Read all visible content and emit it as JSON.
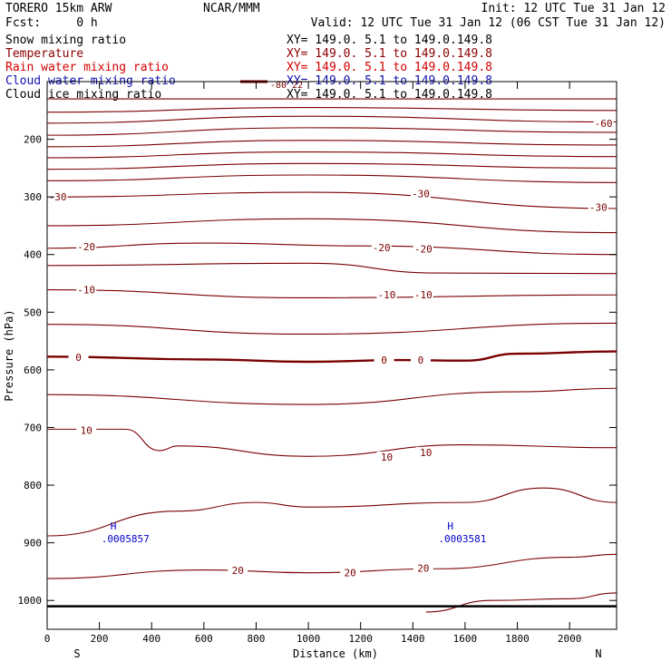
{
  "header": {
    "model_line": "TORERO  15km ARW",
    "center": "NCAR/MMM",
    "init": "Init: 12 UTC Tue 31 Jan 12",
    "fcst": "Fcst:     0 h",
    "valid": "Valid: 12 UTC Tue 31 Jan 12 (06 CST Tue 31 Jan 12)"
  },
  "chart_data": {
    "type": "line",
    "title": "",
    "xlabel": "Distance (km)",
    "ylabel": "Pressure (hPa)",
    "xlim": [
      0,
      2180
    ],
    "ylim": [
      1050,
      100
    ],
    "x_ticks": [
      0,
      200,
      400,
      600,
      800,
      1000,
      1200,
      1400,
      1600,
      1800,
      2000
    ],
    "y_ticks": [
      200,
      300,
      400,
      500,
      600,
      700,
      800,
      900,
      1000
    ],
    "x_end_labels": {
      "left": "S",
      "right": "N"
    },
    "legend_placement": "top-left",
    "legend": [
      {
        "name": "Snow mixing ratio",
        "xy": "XY= 149.0.  5.1 to 149.0.149.8",
        "color": "#000000"
      },
      {
        "name": "Temperature",
        "xy": "XY= 149.0.  5.1 to 149.0.149.8",
        "color": "#8b0000"
      },
      {
        "name": "Rain water mixing ratio",
        "xy": "XY= 149.0.  5.1 to 149.0.149.8",
        "color": "#d40000"
      },
      {
        "name": "Cloud water mixing ratio",
        "xy": "XY= 149.0.  5.1 to 149.0.149.8",
        "color": "#1010b0"
      },
      {
        "name": "Cloud ice mixing ratio",
        "xy": "XY= 149.0.  5.1 to 149.0.149.8",
        "color": "#000000"
      }
    ],
    "legend_swatch_label": "-80 22",
    "colors": {
      "temperature": "#7a0000",
      "surface": "#000000",
      "max_marker": "#0000cc"
    },
    "contours": [
      {
        "label": "",
        "points": [
          [
            0,
            130
          ],
          [
            2180,
            130
          ]
        ]
      },
      {
        "label": "",
        "points": [
          [
            0,
            153
          ],
          [
            1000,
            145
          ],
          [
            2180,
            150
          ]
        ]
      },
      {
        "label": "-60",
        "points": [
          [
            0,
            172
          ],
          [
            1000,
            160
          ],
          [
            2180,
            170
          ]
        ]
      },
      {
        "label": "",
        "points": [
          [
            0,
            193
          ],
          [
            1000,
            180
          ],
          [
            2180,
            188
          ]
        ]
      },
      {
        "label": "",
        "points": [
          [
            0,
            213
          ],
          [
            1000,
            202
          ],
          [
            2180,
            210
          ]
        ]
      },
      {
        "label": "",
        "points": [
          [
            0,
            232
          ],
          [
            1000,
            222
          ],
          [
            2180,
            230
          ]
        ]
      },
      {
        "label": "",
        "points": [
          [
            0,
            252
          ],
          [
            1000,
            242
          ],
          [
            2180,
            250
          ]
        ]
      },
      {
        "label": "",
        "points": [
          [
            0,
            272
          ],
          [
            1000,
            262
          ],
          [
            2180,
            275
          ]
        ]
      },
      {
        "label": "-30",
        "points": [
          [
            0,
            300
          ],
          [
            1000,
            292
          ],
          [
            2180,
            320
          ]
        ]
      },
      {
        "label": "",
        "points": [
          [
            0,
            350
          ],
          [
            1000,
            338
          ],
          [
            2180,
            362
          ]
        ]
      },
      {
        "label": "-20",
        "points": [
          [
            0,
            389
          ],
          [
            600,
            380
          ],
          [
            1200,
            385
          ],
          [
            2180,
            400
          ]
        ]
      },
      {
        "label": "",
        "points": [
          [
            0,
            419
          ],
          [
            1000,
            415
          ],
          [
            1500,
            432
          ],
          [
            2180,
            433
          ]
        ]
      },
      {
        "label": "-10",
        "points": [
          [
            0,
            461
          ],
          [
            1000,
            475
          ],
          [
            2180,
            470
          ]
        ]
      },
      {
        "label": "",
        "points": [
          [
            0,
            521
          ],
          [
            1000,
            538
          ],
          [
            2180,
            519
          ]
        ]
      },
      {
        "label": "0",
        "bold": true,
        "points": [
          [
            0,
            577
          ],
          [
            600,
            582
          ],
          [
            1000,
            586
          ],
          [
            1350,
            583
          ],
          [
            1600,
            584
          ],
          [
            1800,
            572
          ],
          [
            2180,
            568
          ]
        ]
      },
      {
        "label": "",
        "points": [
          [
            0,
            643
          ],
          [
            1000,
            660
          ],
          [
            1800,
            638
          ],
          [
            2180,
            632
          ]
        ]
      },
      {
        "label": "10",
        "points": [
          [
            0,
            703
          ],
          [
            300,
            703
          ],
          [
            430,
            740
          ],
          [
            500,
            732
          ],
          [
            1000,
            750
          ],
          [
            1600,
            730
          ],
          [
            2180,
            735
          ]
        ]
      },
      {
        "label": "",
        "points": [
          [
            0,
            888
          ],
          [
            500,
            845
          ],
          [
            800,
            830
          ],
          [
            1000,
            838
          ],
          [
            1600,
            830
          ],
          [
            1900,
            805
          ],
          [
            2180,
            830
          ]
        ]
      },
      {
        "label": "20",
        "points": [
          [
            0,
            962
          ],
          [
            600,
            947
          ],
          [
            1000,
            952
          ],
          [
            1500,
            945
          ],
          [
            2000,
            925
          ],
          [
            2180,
            920
          ]
        ]
      },
      {
        "label": "",
        "points": [
          [
            1450,
            1020
          ],
          [
            1700,
            1000
          ],
          [
            2000,
            997
          ],
          [
            2180,
            987
          ]
        ]
      }
    ],
    "contour_labels": [
      {
        "text": "-60",
        "x": 2130,
        "p": 172
      },
      {
        "text": "-30",
        "x": 40,
        "p": 300
      },
      {
        "text": "-30",
        "x": 1430,
        "p": 294
      },
      {
        "text": "-30",
        "x": 2110,
        "p": 318
      },
      {
        "text": "-20",
        "x": 150,
        "p": 386
      },
      {
        "text": "-20",
        "x": 1280,
        "p": 388
      },
      {
        "text": "-20",
        "x": 1440,
        "p": 390
      },
      {
        "text": "-10",
        "x": 150,
        "p": 461
      },
      {
        "text": "-10",
        "x": 1300,
        "p": 470
      },
      {
        "text": "-10",
        "x": 1440,
        "p": 470
      },
      {
        "text": "0",
        "x": 120,
        "p": 578
      },
      {
        "text": "0",
        "x": 1290,
        "p": 583
      },
      {
        "text": "0",
        "x": 1430,
        "p": 583
      },
      {
        "text": "10",
        "x": 150,
        "p": 705
      },
      {
        "text": "10",
        "x": 1300,
        "p": 751
      },
      {
        "text": "10",
        "x": 1450,
        "p": 743
      },
      {
        "text": "20",
        "x": 730,
        "p": 948
      },
      {
        "text": "20",
        "x": 1160,
        "p": 952
      },
      {
        "text": "20",
        "x": 1440,
        "p": 944
      }
    ],
    "max_markers": [
      {
        "symbol": "H",
        "value": ".0005857",
        "x": 270,
        "p": 880
      },
      {
        "symbol": "H",
        "value": ".0003581",
        "x": 1560,
        "p": 880
      }
    ],
    "surface": {
      "points": [
        [
          0,
          1010
        ],
        [
          2180,
          1010
        ]
      ]
    }
  }
}
